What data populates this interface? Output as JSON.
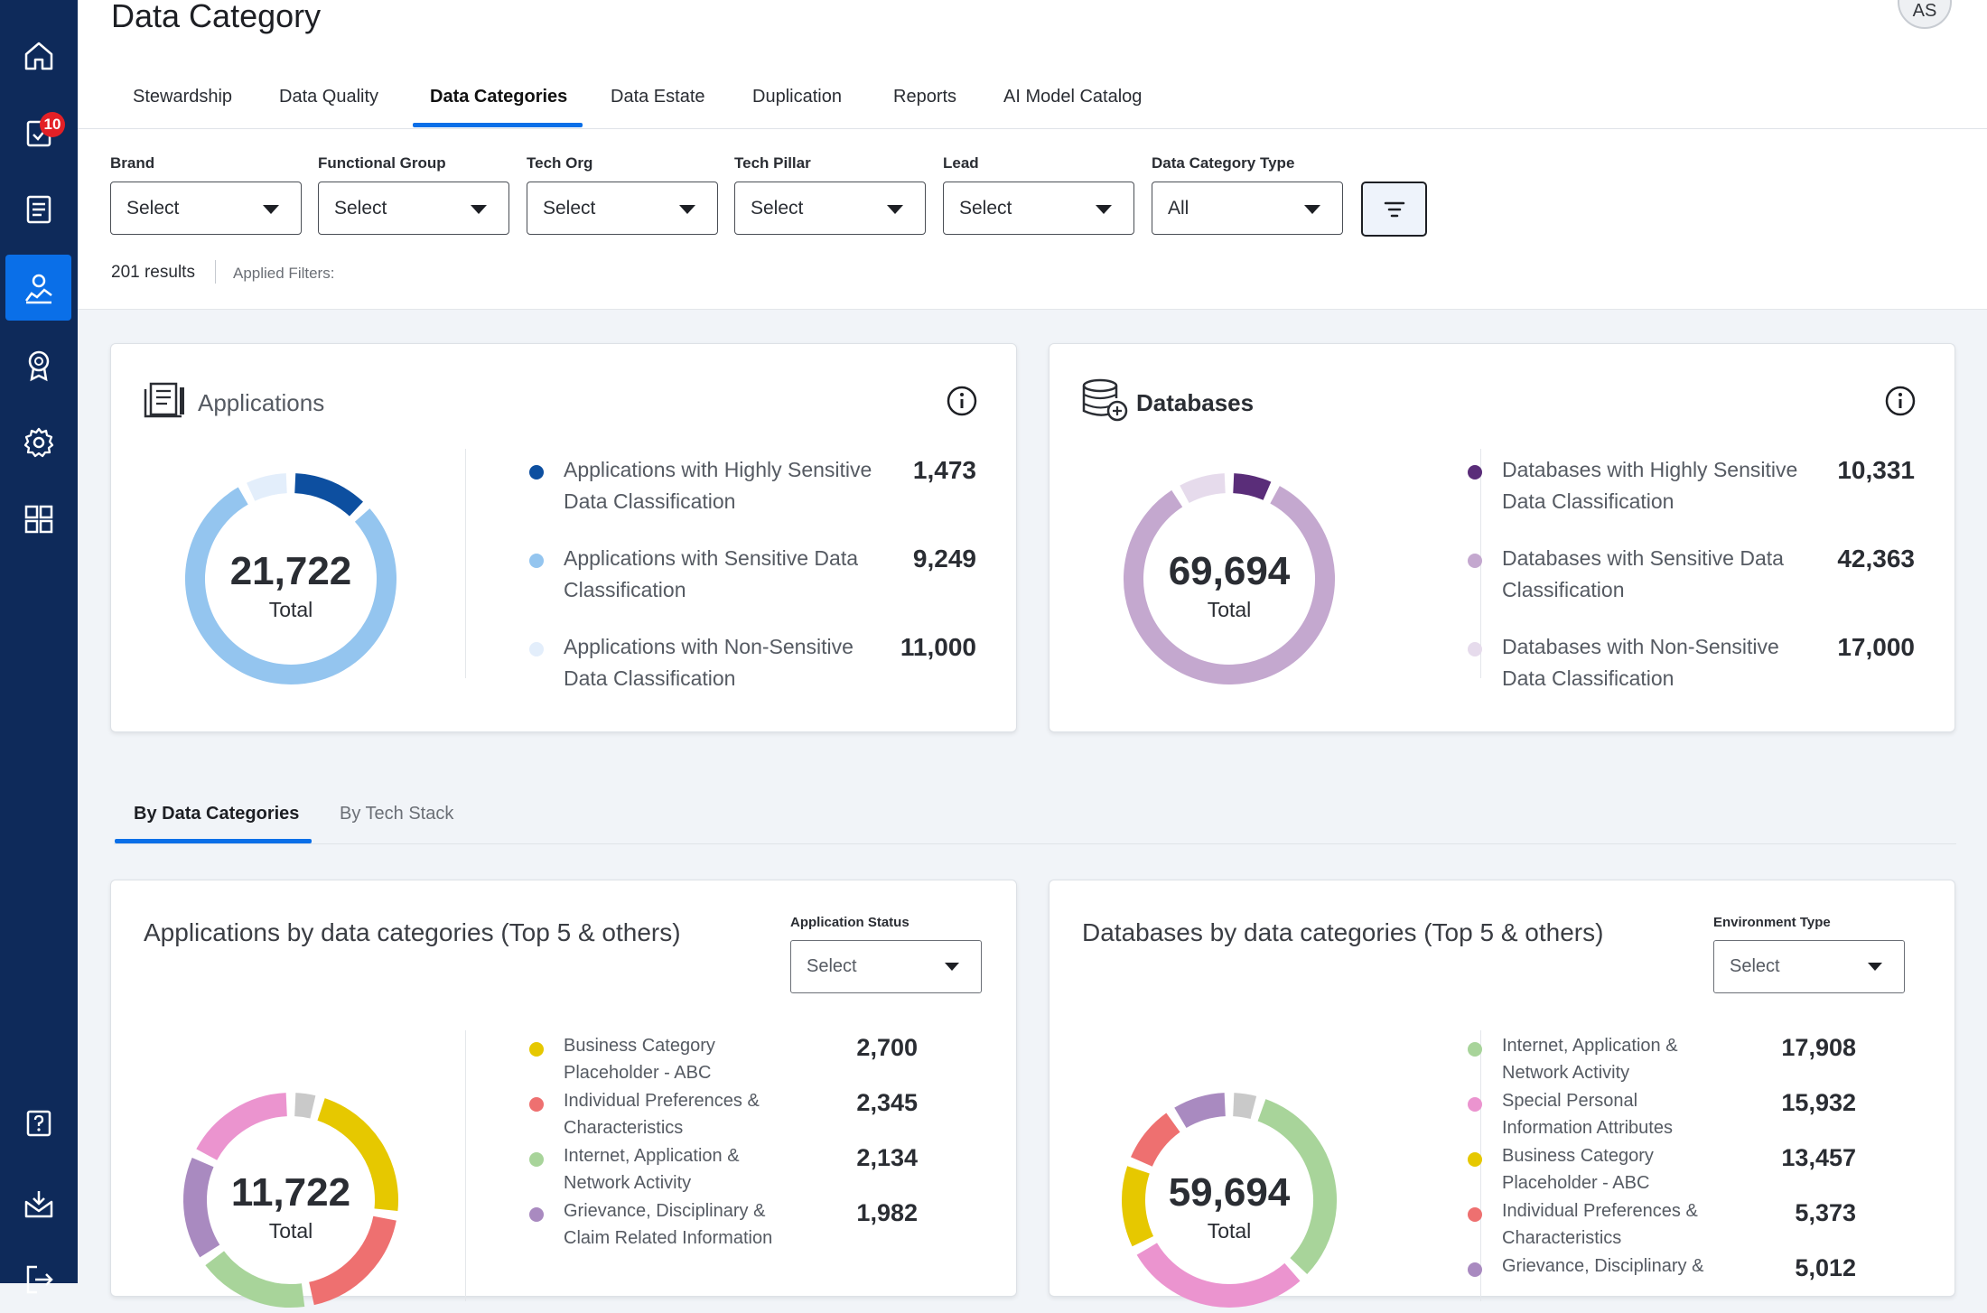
{
  "header": {
    "title": "Data Category",
    "avatar_initials": "AS"
  },
  "sidebar": {
    "items": [
      {
        "icon": "home-icon",
        "active": false
      },
      {
        "icon": "tasks-icon",
        "badge": "10",
        "active": false
      },
      {
        "icon": "document-icon",
        "active": false
      },
      {
        "icon": "data-user-icon",
        "active": true
      },
      {
        "icon": "award-icon",
        "active": false
      },
      {
        "icon": "gear-icon",
        "active": false
      },
      {
        "icon": "grid-icon",
        "active": false
      },
      {
        "icon": "help-icon",
        "active": false
      },
      {
        "icon": "mail-download-icon",
        "active": false
      },
      {
        "icon": "logout-icon",
        "active": false
      }
    ]
  },
  "tabs": [
    {
      "label": "Stewardship"
    },
    {
      "label": "Data Quality"
    },
    {
      "label": "Data Categories",
      "active": true
    },
    {
      "label": "Data Estate"
    },
    {
      "label": "Duplication"
    },
    {
      "label": "Reports"
    },
    {
      "label": "AI Model Catalog"
    }
  ],
  "filters": [
    {
      "label": "Brand",
      "value": "Select"
    },
    {
      "label": "Functional Group",
      "value": "Select"
    },
    {
      "label": "Tech Org",
      "value": "Select"
    },
    {
      "label": "Tech Pillar",
      "value": "Select"
    },
    {
      "label": "Lead",
      "value": "Select"
    },
    {
      "label": "Data Category Type",
      "value": "All"
    }
  ],
  "results": {
    "count_text": "201 results",
    "applied_label": "Applied Filters:"
  },
  "applications_card": {
    "title": "Applications",
    "total": "21,722",
    "total_label": "Total",
    "legend": [
      {
        "label": "Applications with Highly Sensitive Data Classification",
        "value": "1,473",
        "color": "#0d4fa0"
      },
      {
        "label": "Applications with Sensitive Data Classification",
        "value": "9,249",
        "color": "#94c5ef"
      },
      {
        "label": "Applications with Non-Sensitive Data Classification",
        "value": "11,000",
        "color": "#e3eefb"
      }
    ]
  },
  "databases_card": {
    "title": "Databases",
    "total": "69,694",
    "total_label": "Total",
    "legend": [
      {
        "label": "Databases with Highly Sensitive Data Classification",
        "value": "10,331",
        "color": "#5a2d79"
      },
      {
        "label": "Databases with Sensitive Data Classification",
        "value": "42,363",
        "color": "#c4a8cf"
      },
      {
        "label": "Databases with Non-Sensitive Data Classification",
        "value": "17,000",
        "color": "#e6dbec"
      }
    ]
  },
  "subtabs": [
    {
      "label": "By Data Categories",
      "active": true
    },
    {
      "label": "By Tech Stack"
    }
  ],
  "apps_by_category": {
    "title": "Applications by data categories (Top 5 & others)",
    "filter_label": "Application Status",
    "filter_value": "Select",
    "total": "11,722",
    "total_label": "Total",
    "legend": [
      {
        "label": "Business Category Placeholder - ABC",
        "value": "2,700",
        "color": "#e6c800"
      },
      {
        "label": "Individual Preferences & Characteristics",
        "value": "2,345",
        "color": "#ee7070"
      },
      {
        "label": "Internet, Application & Network Activity",
        "value": "2,134",
        "color": "#a8d49a"
      },
      {
        "label": "Grievance, Disciplinary & Claim Related Information",
        "value": "1,982",
        "color": "#a98ac0"
      }
    ]
  },
  "dbs_by_category": {
    "title": "Databases by data categories (Top 5 & others)",
    "filter_label": "Environment Type",
    "filter_value": "Select",
    "total": "59,694",
    "total_label": "Total",
    "legend": [
      {
        "label": "Internet, Application & Network Activity",
        "value": "17,908",
        "color": "#a8d49a"
      },
      {
        "label": "Special Personal Information Attributes",
        "value": "15,932",
        "color": "#eb94cf"
      },
      {
        "label": "Business Category Placeholder - ABC",
        "value": "13,457",
        "color": "#e6c800"
      },
      {
        "label": "Individual Preferences & Characteristics",
        "value": "5,373",
        "color": "#ee7070"
      },
      {
        "label": "Grievance, Disciplinary &",
        "value": "5,012",
        "color": "#a98ac0"
      }
    ]
  }
}
